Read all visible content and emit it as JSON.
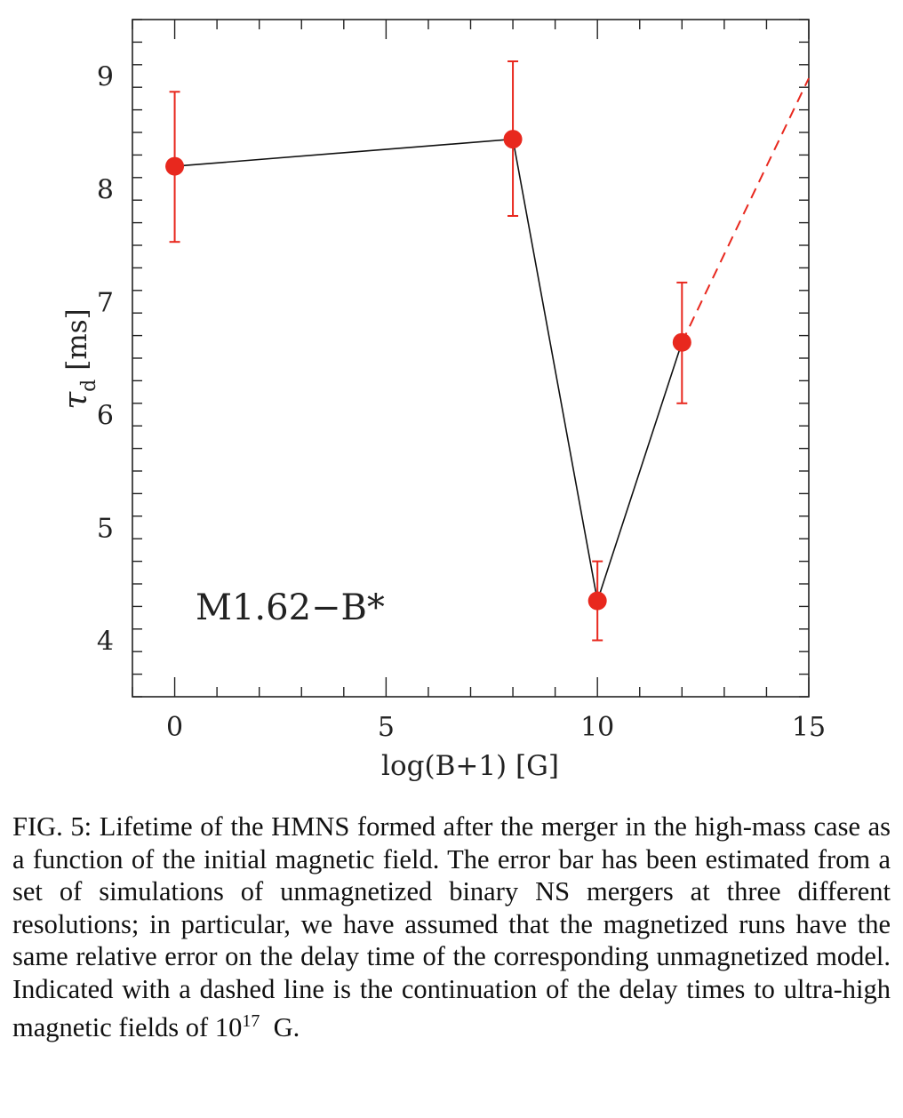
{
  "chart_data": {
    "type": "line",
    "annotation": "M1.62−B*",
    "xlabel": "log(B+1) [G]",
    "ylabel_main": "τ",
    "ylabel_sub": "d",
    "ylabel_unit": "[ms]",
    "xlim": [
      -1,
      15
    ],
    "ylim": [
      3.5,
      9.5
    ],
    "x_ticks": [
      0,
      5,
      10,
      15
    ],
    "y_ticks": [
      4,
      5,
      6,
      7,
      8,
      9
    ],
    "x_minor_step": 1,
    "y_minor_step": 0.2,
    "grid": false,
    "series": [
      {
        "style": "solid",
        "color": "#111111",
        "marker_color": "#e8281e",
        "x": [
          0,
          8,
          10,
          12
        ],
        "y": [
          8.2,
          8.44,
          4.35,
          6.64
        ],
        "y_err_low": [
          7.53,
          7.76,
          4.0,
          6.1
        ],
        "y_err_high": [
          8.86,
          9.13,
          4.7,
          7.17
        ]
      },
      {
        "style": "dashed",
        "color": "#e8281e",
        "x": [
          12,
          15
        ],
        "y": [
          6.64,
          8.98
        ]
      }
    ]
  },
  "caption": {
    "prefix": "FIG. 5: Lifetime of the HMNS formed after the merger in the high-mass case as a function of the initial magnetic field.  The error bar has been estimated from a set of simulations of unmagnetized binary NS mergers at three different resolutions; in particular, we have assumed that the magnetized runs have the same relative error on the delay time of the corresponding unmagnetized model. Indicated with a dashed line is the continuation of the delay times to ultra-high magnetic fields of ",
    "base": "10",
    "exponent": "17",
    "suffix": "  G."
  }
}
